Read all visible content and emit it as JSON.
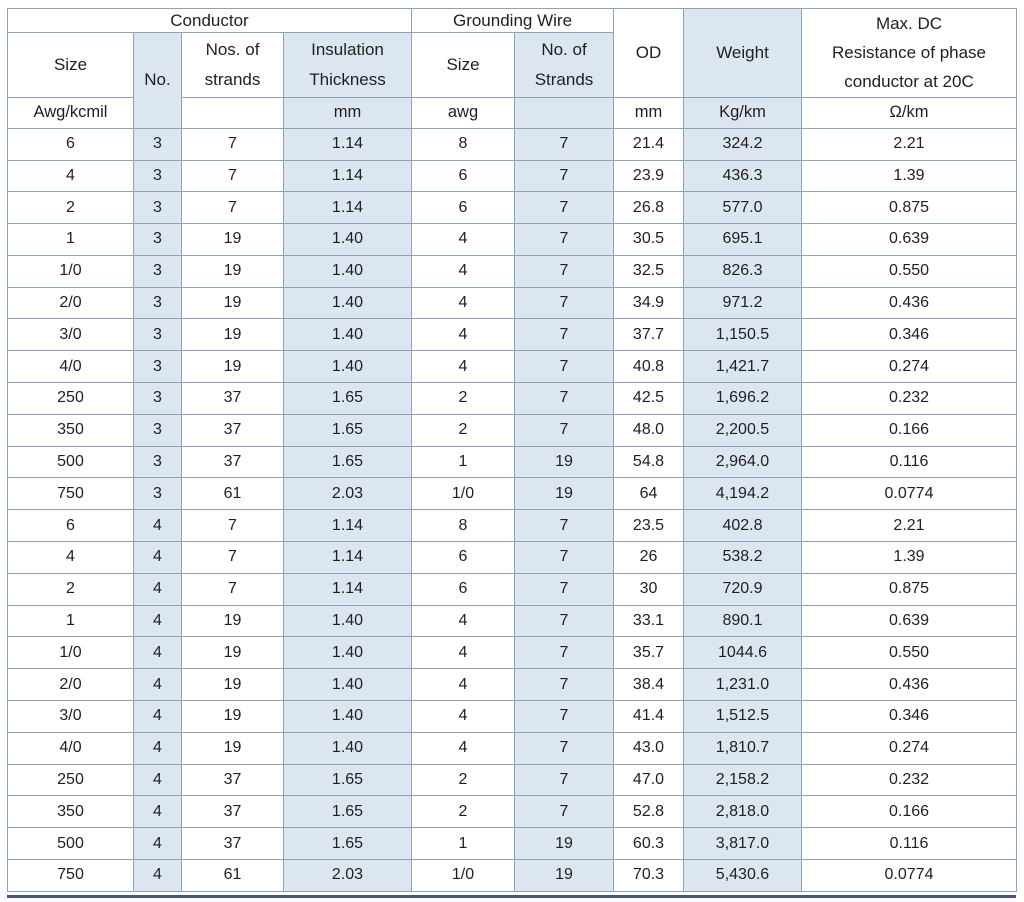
{
  "table": {
    "title_semantic": "cable-specification-table",
    "group_headers": {
      "conductor": "Conductor",
      "grounding_wire": "Grounding Wire"
    },
    "columns": {
      "conductor_size": "Size",
      "conductor_no": "No.",
      "conductor_strands": "Nos. of\nstrands",
      "insulation_thickness": "Insulation\nThickness",
      "grounding_size": "Size",
      "grounding_strands": "No. of\nStrands",
      "od": "OD",
      "weight": "Weight",
      "resistance": "Max. DC\nResistance of phase\nconductor at 20C"
    },
    "units": {
      "conductor_size": "Awg/kcmil",
      "conductor_no": "",
      "conductor_strands": "",
      "insulation_thickness": "mm",
      "grounding_size": "awg",
      "grounding_strands": "",
      "od": "mm",
      "weight": "Kg/km",
      "resistance": "Ω/km"
    },
    "rows": [
      [
        "6",
        "3",
        "7",
        "1.14",
        "8",
        "7",
        "21.4",
        "324.2",
        "2.21"
      ],
      [
        "4",
        "3",
        "7",
        "1.14",
        "6",
        "7",
        "23.9",
        "436.3",
        "1.39"
      ],
      [
        "2",
        "3",
        "7",
        "1.14",
        "6",
        "7",
        "26.8",
        "577.0",
        "0.875"
      ],
      [
        "1",
        "3",
        "19",
        "1.40",
        "4",
        "7",
        "30.5",
        "695.1",
        "0.639"
      ],
      [
        "1/0",
        "3",
        "19",
        "1.40",
        "4",
        "7",
        "32.5",
        "826.3",
        "0.550"
      ],
      [
        "2/0",
        "3",
        "19",
        "1.40",
        "4",
        "7",
        "34.9",
        "971.2",
        "0.436"
      ],
      [
        "3/0",
        "3",
        "19",
        "1.40",
        "4",
        "7",
        "37.7",
        "1,150.5",
        "0.346"
      ],
      [
        "4/0",
        "3",
        "19",
        "1.40",
        "4",
        "7",
        "40.8",
        "1,421.7",
        "0.274"
      ],
      [
        "250",
        "3",
        "37",
        "1.65",
        "2",
        "7",
        "42.5",
        "1,696.2",
        "0.232"
      ],
      [
        "350",
        "3",
        "37",
        "1.65",
        "2",
        "7",
        "48.0",
        "2,200.5",
        "0.166"
      ],
      [
        "500",
        "3",
        "37",
        "1.65",
        "1",
        "19",
        "54.8",
        "2,964.0",
        "0.116"
      ],
      [
        "750",
        "3",
        "61",
        "2.03",
        "1/0",
        "19",
        "64",
        "4,194.2",
        "0.0774"
      ],
      [
        "6",
        "4",
        "7",
        "1.14",
        "8",
        "7",
        "23.5",
        "402.8",
        "2.21"
      ],
      [
        "4",
        "4",
        "7",
        "1.14",
        "6",
        "7",
        "26",
        "538.2",
        "1.39"
      ],
      [
        "2",
        "4",
        "7",
        "1.14",
        "6",
        "7",
        "30",
        "720.9",
        "0.875"
      ],
      [
        "1",
        "4",
        "19",
        "1.40",
        "4",
        "7",
        "33.1",
        "890.1",
        "0.639"
      ],
      [
        "1/0",
        "4",
        "19",
        "1.40",
        "4",
        "7",
        "35.7",
        "1044.6",
        "0.550"
      ],
      [
        "2/0",
        "4",
        "19",
        "1.40",
        "4",
        "7",
        "38.4",
        "1,231.0",
        "0.436"
      ],
      [
        "3/0",
        "4",
        "19",
        "1.40",
        "4",
        "7",
        "41.4",
        "1,512.5",
        "0.346"
      ],
      [
        "4/0",
        "4",
        "19",
        "1.40",
        "4",
        "7",
        "43.0",
        "1,810.7",
        "0.274"
      ],
      [
        "250",
        "4",
        "37",
        "1.65",
        "2",
        "7",
        "47.0",
        "2,158.2",
        "0.232"
      ],
      [
        "350",
        "4",
        "37",
        "1.65",
        "2",
        "7",
        "52.8",
        "2,818.0",
        "0.166"
      ],
      [
        "500",
        "4",
        "37",
        "1.65",
        "1",
        "19",
        "60.3",
        "3,817.0",
        "0.116"
      ],
      [
        "750",
        "4",
        "61",
        "2.03",
        "1/0",
        "19",
        "70.3",
        "5,430.6",
        "0.0774"
      ]
    ],
    "colors": {
      "column_shade": "#dce6f1",
      "grid_border": "#8ba3bd",
      "bottom_rule": "#47567e",
      "text": "#1f1f1f"
    }
  }
}
